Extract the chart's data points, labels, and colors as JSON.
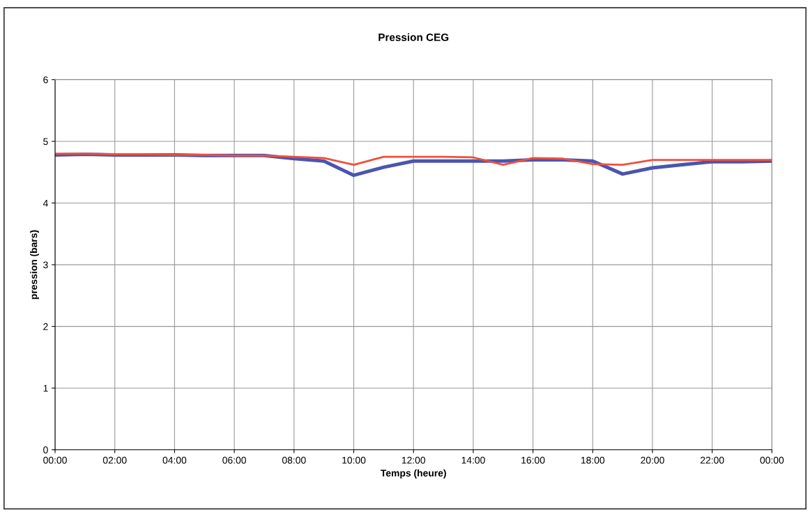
{
  "chart_data": {
    "type": "line",
    "title": "Pression CEG",
    "xlabel": "Temps (heure)",
    "ylabel": "pression (bars)",
    "x": [
      0,
      1,
      2,
      3,
      4,
      5,
      6,
      7,
      8,
      9,
      10,
      11,
      12,
      13,
      14,
      15,
      16,
      17,
      18,
      19,
      20,
      21,
      22,
      23,
      24
    ],
    "series": [
      {
        "color": "#4a55b0",
        "values": [
          4.78,
          4.79,
          4.78,
          4.78,
          4.78,
          4.77,
          4.77,
          4.77,
          4.72,
          4.68,
          4.45,
          4.58,
          4.68,
          4.68,
          4.68,
          4.68,
          4.7,
          4.7,
          4.68,
          4.47,
          4.57,
          4.62,
          4.67,
          4.67,
          4.68
        ]
      },
      {
        "color": "#f0503a",
        "values": [
          4.8,
          4.8,
          4.79,
          4.79,
          4.78,
          4.78,
          4.77,
          4.77,
          4.75,
          4.73,
          4.62,
          4.75,
          4.75,
          4.75,
          4.74,
          4.62,
          4.73,
          4.72,
          4.63,
          4.62,
          4.7,
          4.7,
          4.7,
          4.7,
          4.7
        ]
      }
    ],
    "xlim": [
      0,
      24
    ],
    "xticks": [
      {
        "value": 0,
        "label": "00:00"
      },
      {
        "value": 2,
        "label": "02:00"
      },
      {
        "value": 4,
        "label": "04:00"
      },
      {
        "value": 6,
        "label": "06:00"
      },
      {
        "value": 8,
        "label": "08:00"
      },
      {
        "value": 10,
        "label": "10:00"
      },
      {
        "value": 12,
        "label": "12:00"
      },
      {
        "value": 14,
        "label": "14:00"
      },
      {
        "value": 16,
        "label": "16:00"
      },
      {
        "value": 18,
        "label": "18:00"
      },
      {
        "value": 20,
        "label": "20:00"
      },
      {
        "value": 22,
        "label": "22:00"
      },
      {
        "value": 24,
        "label": "00:00"
      }
    ],
    "ylim": [
      0,
      6
    ],
    "yticks": [
      0,
      1,
      2,
      3,
      4,
      5,
      6
    ],
    "grid": true,
    "marker": "none",
    "line_style": "solid"
  }
}
